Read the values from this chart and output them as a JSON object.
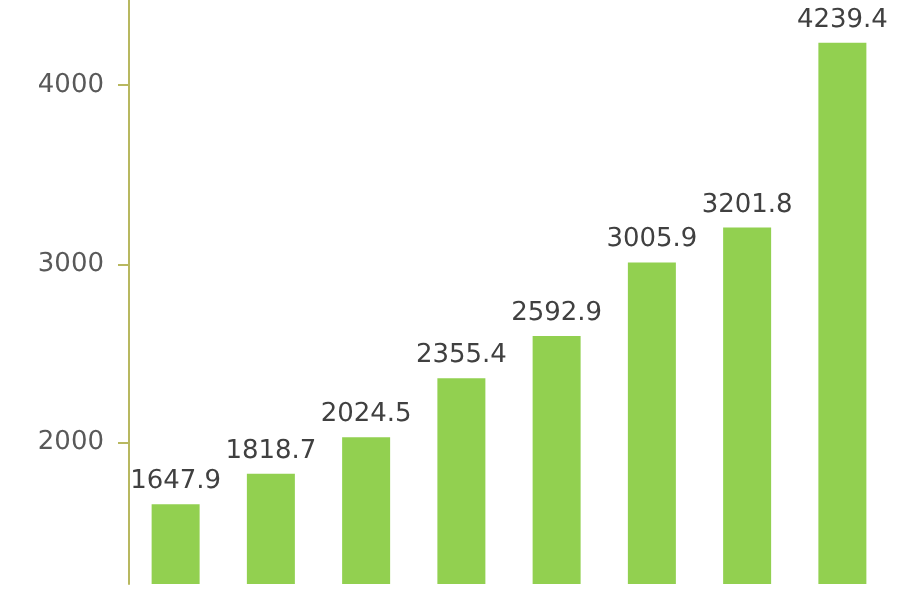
{
  "chart_data": {
    "type": "bar",
    "categories": [
      null,
      null,
      null,
      null,
      null,
      null,
      null,
      null
    ],
    "series": [
      {
        "color": "#92d050",
        "values": [
          1647.9,
          1818.7,
          2024.5,
          2355.4,
          2592.9,
          3005.9,
          3201.8,
          4239.4
        ]
      }
    ],
    "ylim": [
      1200,
      4480
    ],
    "yticks": [
      2000,
      3000,
      4000
    ],
    "data_labels": true
  }
}
